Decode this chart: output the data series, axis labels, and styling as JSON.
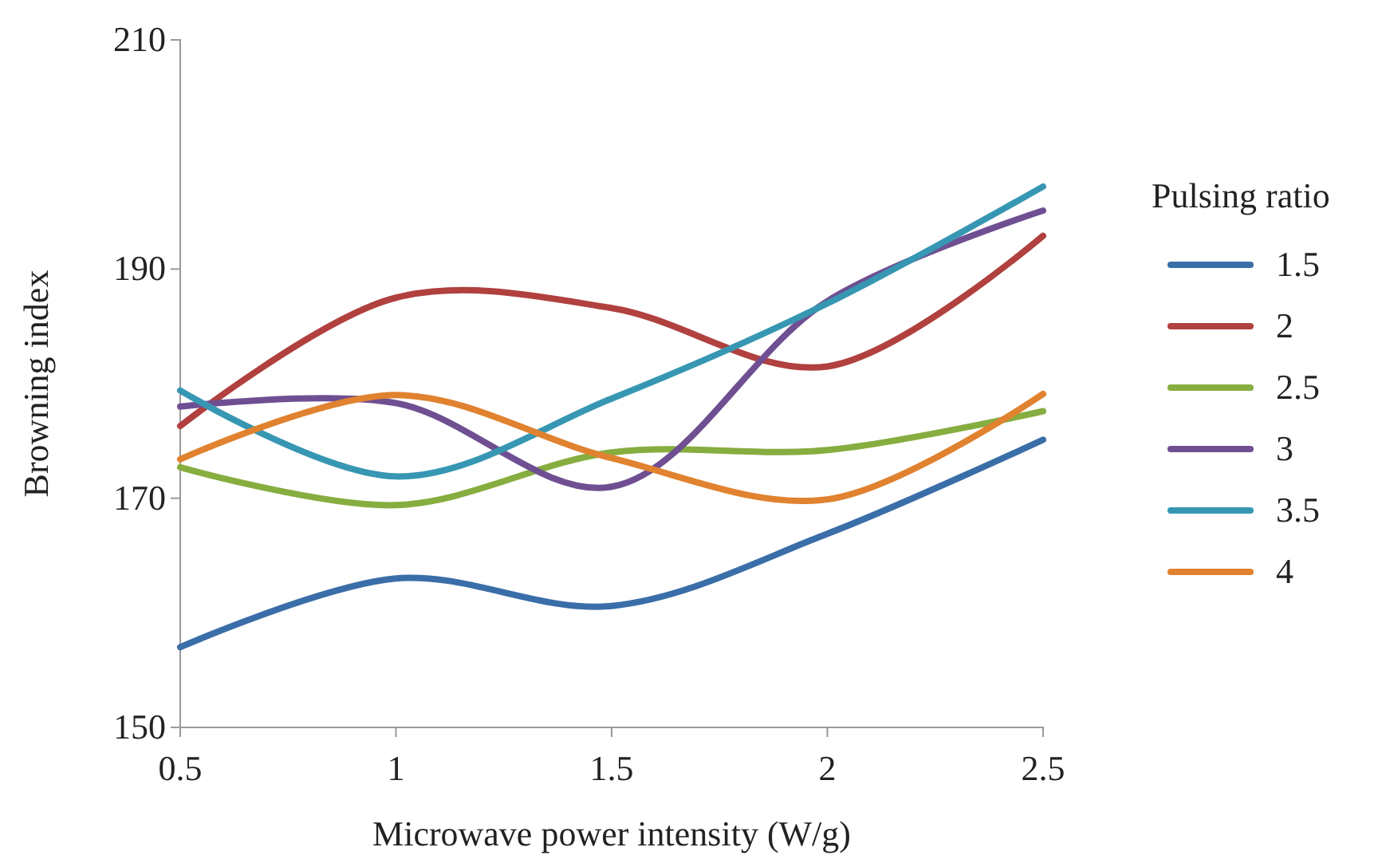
{
  "chart_data": {
    "type": "line",
    "xlabel": "Microwave power intensity (W/g)",
    "ylabel": "Browning index",
    "legend_title": "Pulsing ratio",
    "legend": "right",
    "grid": false,
    "marker": "none",
    "line_style": "solid",
    "x": [
      0.5,
      1,
      1.5,
      2,
      2.5
    ],
    "xlim": [
      0.5,
      2.5
    ],
    "xticks": [
      0.5,
      1,
      1.5,
      2,
      2.5
    ],
    "ylim": [
      150,
      210
    ],
    "yticks": [
      150,
      170,
      190,
      210
    ],
    "series": [
      {
        "name": "1.5",
        "color": "#3a6ea8",
        "values": [
          157,
          163,
          160.6,
          166.9,
          175.1
        ]
      },
      {
        "name": "2",
        "color": "#b0413e",
        "values": [
          176.3,
          187.5,
          186.6,
          181.5,
          192.9
        ]
      },
      {
        "name": "2.5",
        "color": "#86ad3f",
        "values": [
          172.7,
          169.4,
          174,
          174.2,
          177.6
        ]
      },
      {
        "name": "3",
        "color": "#6f4f92",
        "values": [
          178,
          178.3,
          171,
          187.2,
          195.1
        ]
      },
      {
        "name": "3.5",
        "color": "#3797b3",
        "values": [
          179.4,
          171.9,
          178.7,
          187,
          197.2
        ]
      },
      {
        "name": "4",
        "color": "#e0822f",
        "values": [
          173.4,
          179,
          173.5,
          169.9,
          179.1
        ]
      }
    ]
  }
}
